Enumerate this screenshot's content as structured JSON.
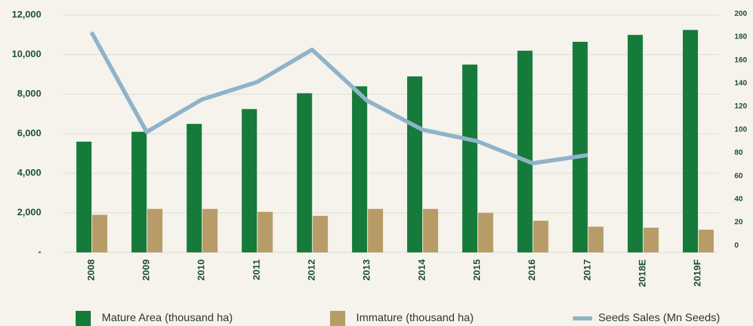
{
  "chart_data": {
    "type": "bar",
    "categories": [
      "2008",
      "2009",
      "2010",
      "2011",
      "2012",
      "2013",
      "2014",
      "2015",
      "2016",
      "2017",
      "2018E",
      "2019F"
    ],
    "series": [
      {
        "name": "Mature Area (thousand ha)",
        "color": "#157a3a",
        "type": "bar",
        "values": [
          5600,
          6100,
          6500,
          7250,
          8050,
          8400,
          8900,
          9500,
          10200,
          10650,
          11000,
          11250
        ]
      },
      {
        "name": "Immature (thousand ha)",
        "color": "#b79c68",
        "type": "bar",
        "values": [
          1900,
          2200,
          2200,
          2050,
          1850,
          2200,
          2200,
          2000,
          1600,
          1300,
          1250,
          1150
        ]
      },
      {
        "name": "Seeds Sales (Mn Seeds)",
        "color": "#8fb3c9",
        "type": "line",
        "axis": "y2",
        "values": [
          184,
          98,
          126,
          141,
          169,
          125,
          100,
          90,
          71,
          78,
          null,
          null
        ]
      }
    ],
    "ylim": [
      0,
      12000
    ],
    "yticks": [
      {
        "value": 0,
        "label": "-"
      },
      {
        "value": 2000,
        "label": "2,000"
      },
      {
        "value": 4000,
        "label": "4,000"
      },
      {
        "value": 6000,
        "label": "6,000"
      },
      {
        "value": 8000,
        "label": "8,000"
      },
      {
        "value": 10000,
        "label": "10,000"
      },
      {
        "value": 12000,
        "label": "12,000"
      }
    ],
    "y2lim": [
      0,
      200
    ],
    "y2ticks": [
      0,
      20,
      40,
      60,
      80,
      100,
      120,
      140,
      160,
      180,
      200
    ],
    "grid": true,
    "legend": "bottom"
  }
}
